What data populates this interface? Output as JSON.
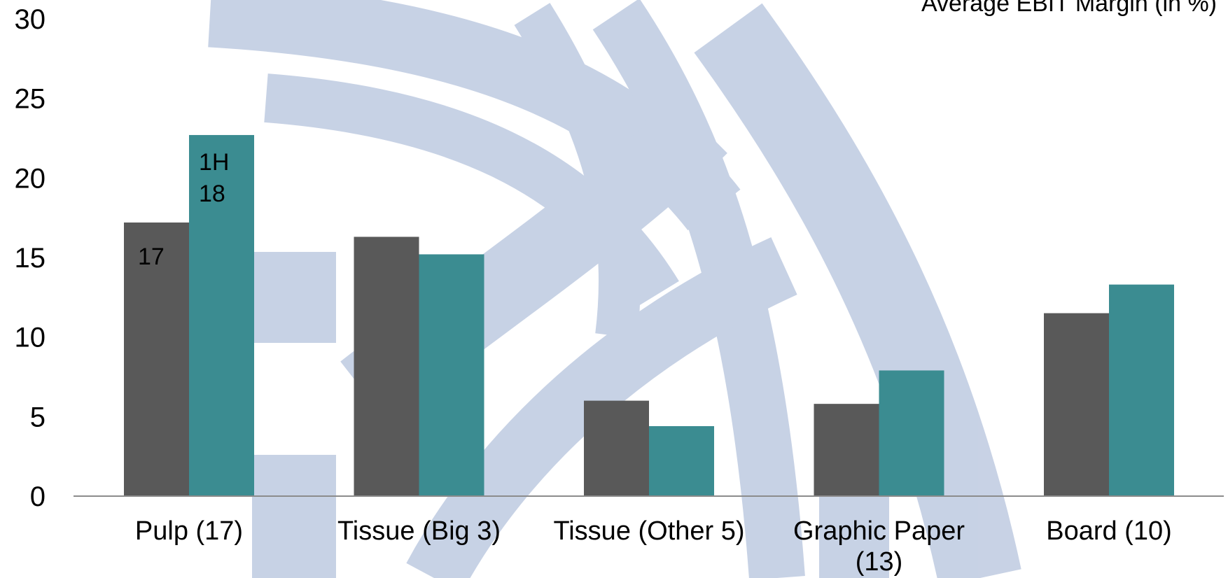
{
  "chart_title": "Average EBIT Margin (in %)",
  "chart_data": {
    "type": "bar",
    "title": "Average EBIT Margin (in %)",
    "xlabel": "",
    "ylabel": "",
    "ylim": [
      0,
      30
    ],
    "yticks": [
      0,
      5,
      10,
      15,
      20,
      25,
      30
    ],
    "categories": [
      [
        "Pulp (17)"
      ],
      [
        "Tissue (Big 3)"
      ],
      [
        "Tissue (Other 5)"
      ],
      [
        "Graphic Paper",
        "(13)"
      ],
      [
        "Board (10)"
      ]
    ],
    "series": [
      {
        "values": [
          17.2,
          16.3,
          6.0,
          5.8,
          11.5
        ],
        "color": "#595959"
      },
      {
        "values": [
          22.7,
          15.2,
          4.4,
          7.9,
          13.3
        ],
        "color": "#3b8c91"
      }
    ],
    "data_labels": [
      {
        "series": 0,
        "index": 0,
        "lines": [
          "17"
        ]
      },
      {
        "series": 1,
        "index": 0,
        "lines": [
          "1H",
          "18"
        ]
      }
    ],
    "grid": false,
    "legend": "none"
  },
  "colors": {
    "axis": "#8c8c8c",
    "watermark": "#c5d0e4"
  }
}
